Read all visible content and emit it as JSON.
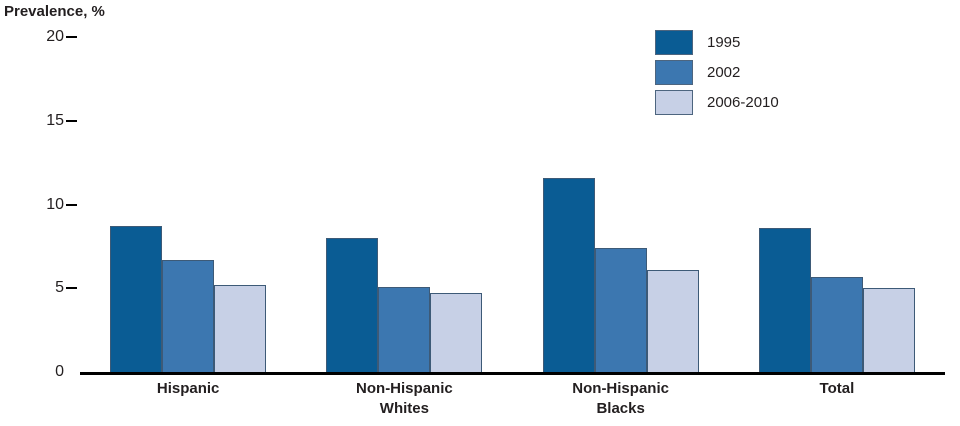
{
  "chart_data": {
    "type": "bar",
    "title": "",
    "ylabel": "Prevalence, %",
    "xlabel": "",
    "categories": [
      "Hispanic",
      "Non-Hispanic\nWhites",
      "Non-Hispanic\nBlacks",
      "Total"
    ],
    "series": [
      {
        "name": "1995",
        "color": "#0a5c94",
        "values": [
          8.7,
          8.0,
          11.6,
          8.6
        ]
      },
      {
        "name": "2002",
        "color": "#3c77b0",
        "values": [
          6.7,
          5.1,
          7.4,
          5.7
        ]
      },
      {
        "name": "2006-2010",
        "color": "#c7d0e6",
        "values": [
          5.2,
          4.7,
          6.1,
          5.0
        ]
      }
    ],
    "ylim": [
      0,
      20
    ],
    "yticks": [
      0,
      5,
      10,
      15,
      20
    ],
    "grid": false,
    "legend_position": "top-right",
    "colors": {
      "axis": "#000000",
      "bar_border": "#3d5a77",
      "text": "#231f20"
    }
  }
}
